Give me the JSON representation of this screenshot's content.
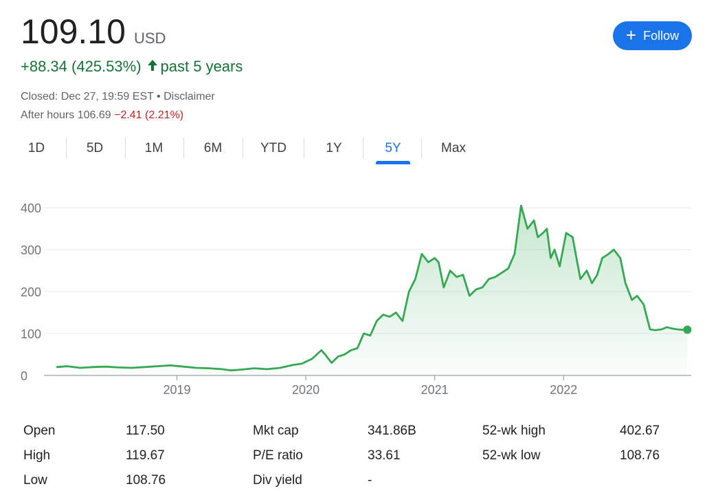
{
  "quote": {
    "price": "109.10",
    "currency": "USD",
    "change": "+88.34 (425.53%)",
    "change_period": "past 5 years",
    "closed_text": "Closed: Dec 27, 19:59 EST • Disclaimer",
    "after_hours_label": "After hours 106.69",
    "after_hours_change": "−2.41 (2.21%)"
  },
  "follow_label": "Follow",
  "tabs": [
    "1D",
    "5D",
    "1M",
    "6M",
    "YTD",
    "1Y",
    "5Y",
    "Max"
  ],
  "active_tab": "5Y",
  "colors": {
    "line": "#34a853",
    "positive": "#137333",
    "negative": "#c5221f",
    "accent": "#1a73e8"
  },
  "chart_data": {
    "type": "area",
    "x_range": [
      2017.99,
      2022.99
    ],
    "ylim": [
      0,
      420
    ],
    "yticks": [
      0,
      100,
      200,
      300,
      400
    ],
    "xticks": [
      {
        "value": 2019,
        "label": "2019"
      },
      {
        "value": 2020,
        "label": "2020"
      },
      {
        "value": 2021,
        "label": "2021"
      },
      {
        "value": 2022,
        "label": "2022"
      }
    ],
    "grid": true,
    "series": [
      {
        "x": [
          2018.07,
          2018.15,
          2018.25,
          2018.35,
          2018.45,
          2018.55,
          2018.65,
          2018.75,
          2018.85,
          2018.95,
          2019.05,
          2019.15,
          2019.25,
          2019.35,
          2019.42,
          2019.5,
          2019.6,
          2019.7,
          2019.8,
          2019.9,
          2019.97,
          2020.05,
          2020.12,
          2020.15,
          2020.2,
          2020.25,
          2020.3,
          2020.35,
          2020.4,
          2020.45,
          2020.5,
          2020.55,
          2020.6,
          2020.65,
          2020.7,
          2020.75,
          2020.8,
          2020.85,
          2020.9,
          2020.95,
          2021.0,
          2021.03,
          2021.07,
          2021.12,
          2021.17,
          2021.22,
          2021.27,
          2021.32,
          2021.37,
          2021.42,
          2021.47,
          2021.52,
          2021.57,
          2021.62,
          2021.67,
          2021.72,
          2021.77,
          2021.8,
          2021.84,
          2021.87,
          2021.9,
          2021.93,
          2021.97,
          2022.02,
          2022.07,
          2022.1,
          2022.13,
          2022.18,
          2022.22,
          2022.26,
          2022.3,
          2022.35,
          2022.39,
          2022.44,
          2022.48,
          2022.53,
          2022.57,
          2022.62,
          2022.67,
          2022.71,
          2022.76,
          2022.8,
          2022.84,
          2022.88,
          2022.92,
          2022.96
        ],
        "values": [
          20,
          22,
          18,
          20,
          21,
          19,
          18,
          20,
          22,
          24,
          21,
          18,
          17,
          15,
          12,
          14,
          17,
          15,
          18,
          25,
          28,
          40,
          60,
          50,
          30,
          45,
          50,
          60,
          65,
          100,
          95,
          130,
          145,
          140,
          150,
          130,
          200,
          230,
          290,
          270,
          280,
          270,
          210,
          250,
          235,
          240,
          190,
          205,
          210,
          230,
          235,
          245,
          255,
          290,
          405,
          350,
          370,
          330,
          340,
          350,
          280,
          300,
          260,
          340,
          330,
          280,
          230,
          250,
          220,
          240,
          280,
          290,
          300,
          280,
          220,
          180,
          190,
          170,
          110,
          108,
          110,
          115,
          112,
          110,
          109,
          109.1
        ]
      }
    ]
  },
  "stats": [
    [
      {
        "label": "Open",
        "value": "117.50"
      },
      {
        "label": "Mkt cap",
        "value": "341.86B"
      },
      {
        "label": "52-wk high",
        "value": "402.67"
      }
    ],
    [
      {
        "label": "High",
        "value": "119.67"
      },
      {
        "label": "P/E ratio",
        "value": "33.61"
      },
      {
        "label": "52-wk low",
        "value": "108.76"
      }
    ],
    [
      {
        "label": "Low",
        "value": "108.76"
      },
      {
        "label": "Div yield",
        "value": "-"
      }
    ]
  ]
}
